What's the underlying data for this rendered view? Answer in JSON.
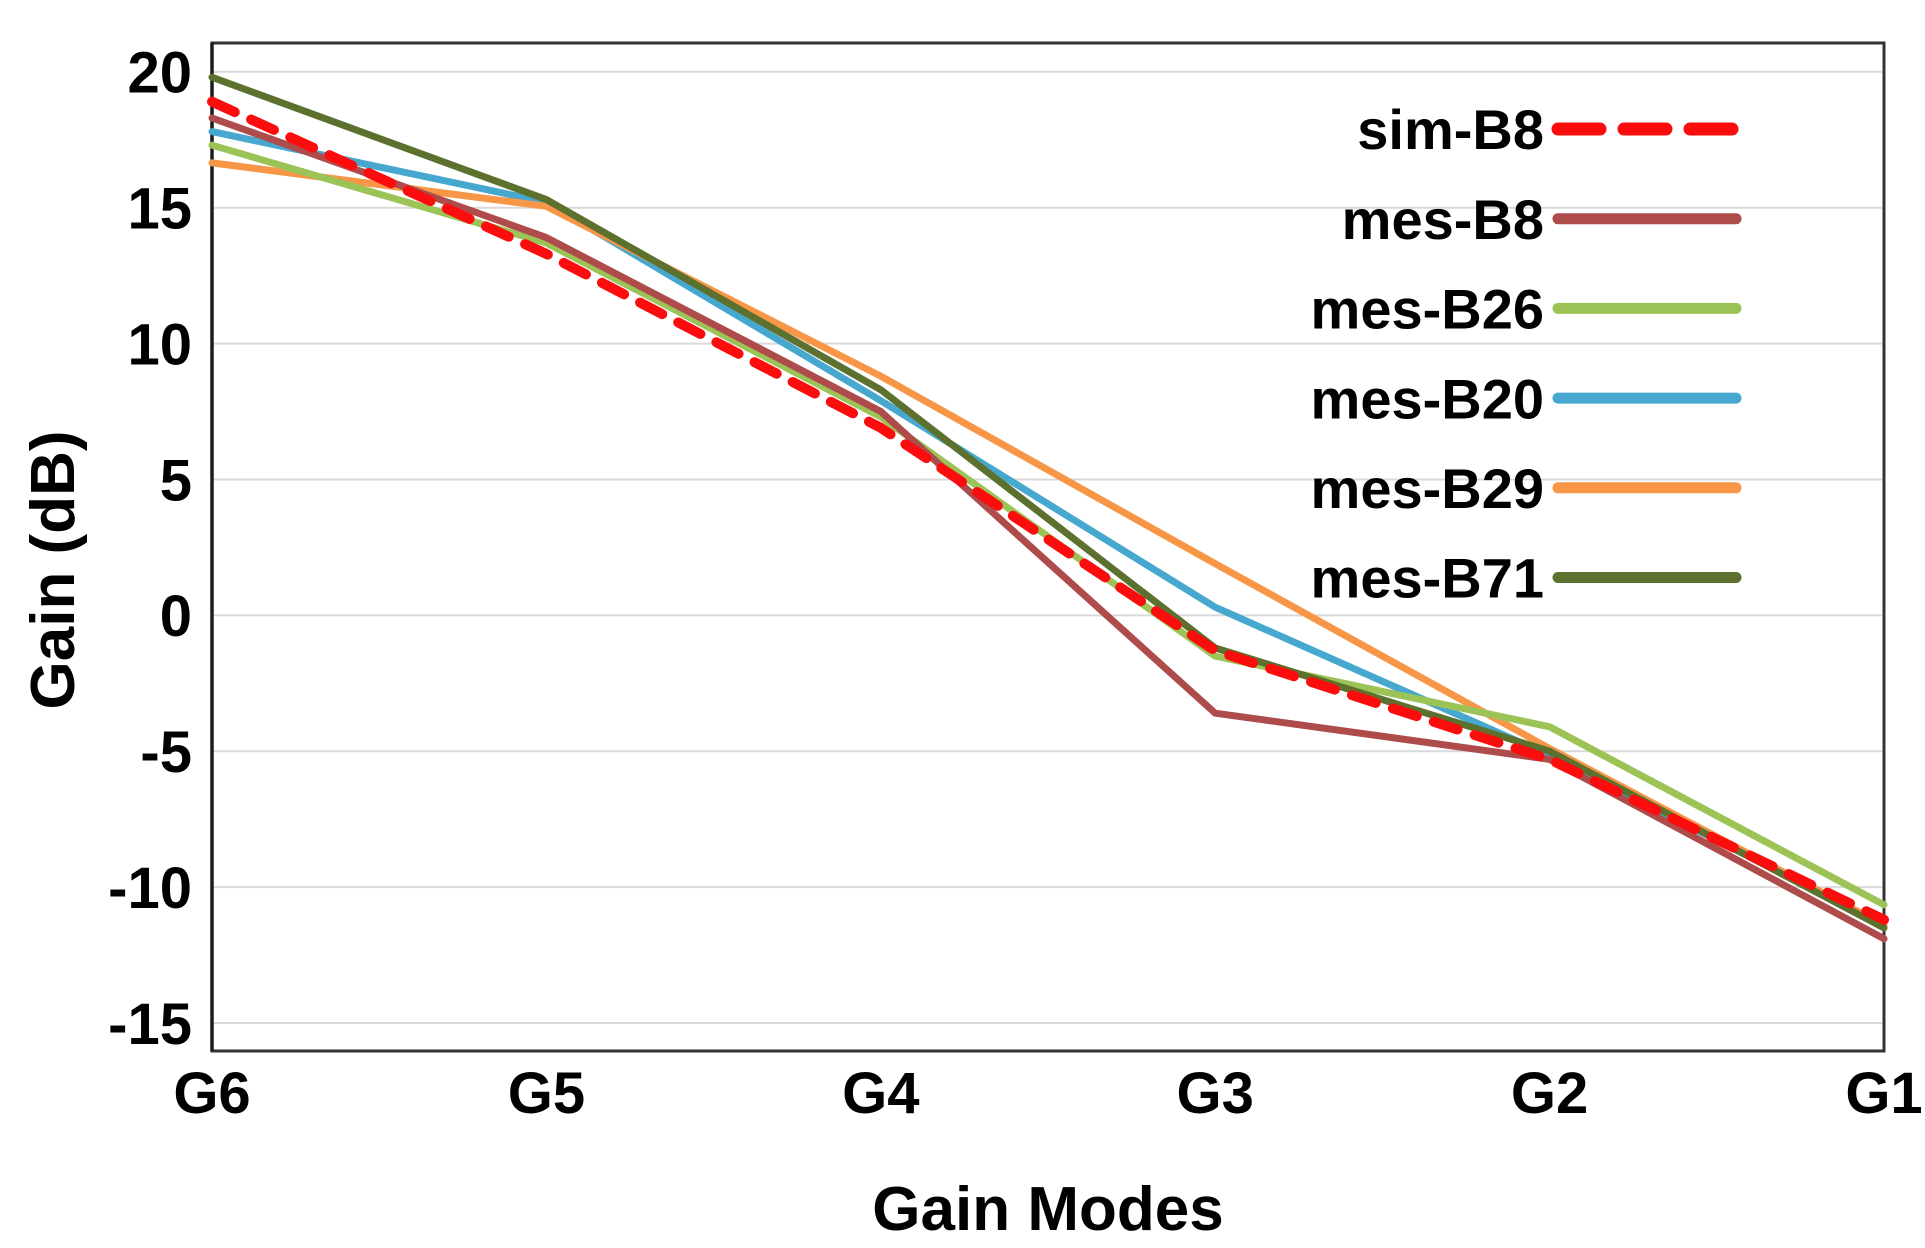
{
  "chart_data": {
    "type": "line",
    "title": "",
    "xlabel": "Gain Modes",
    "ylabel": "Gain (dB)",
    "categories": [
      "G6",
      "G5",
      "G4",
      "G3",
      "G2",
      "G1"
    ],
    "ytick_labels": [
      "20",
      "15",
      "10",
      "5",
      "0",
      "-5",
      "-10",
      "-15"
    ],
    "ytick_values": [
      20,
      15,
      10,
      5,
      0,
      -5,
      -10,
      -15
    ],
    "ylim": [
      -16.03,
      21.06
    ],
    "grid": "horizontal",
    "legend_position": "top-right-inside",
    "series": [
      {
        "name": "sim-B8",
        "color": "#fc0d0d",
        "style": "dashed",
        "width": 10,
        "values": [
          18.9,
          13.3,
          6.9,
          -1.3,
          -5.3,
          -11.2
        ]
      },
      {
        "name": "mes-B8",
        "color": "#ae4b4b",
        "style": "solid",
        "width": 7,
        "values": [
          18.3,
          13.9,
          7.5,
          -3.6,
          -5.3,
          -11.9
        ]
      },
      {
        "name": "mes-B26",
        "color": "#9cc355",
        "style": "solid",
        "width": 7,
        "values": [
          17.3,
          13.7,
          7.3,
          -1.5,
          -4.1,
          -10.65
        ]
      },
      {
        "name": "mes-B20",
        "color": "#46a8ce",
        "style": "solid",
        "width": 7,
        "values": [
          17.8,
          15.2,
          7.9,
          0.3,
          -5.15,
          -11.4
        ]
      },
      {
        "name": "mes-B29",
        "color": "#f79646",
        "style": "solid",
        "width": 7,
        "values": [
          16.65,
          15.05,
          8.8,
          1.9,
          -4.9,
          -11.4
        ]
      },
      {
        "name": "mes-B71",
        "color": "#5c712e",
        "style": "solid",
        "width": 7,
        "values": [
          19.8,
          15.3,
          8.3,
          -1.2,
          -5.0,
          -11.5
        ]
      }
    ],
    "draw_order": [
      "mes-B20",
      "mes-B29",
      "mes-B26",
      "mes-B8",
      "mes-B71",
      "sim-B8"
    ],
    "colors": {
      "grid": "#d9d9d9",
      "frame": "#333333",
      "text": "#000000",
      "background": "#ffffff"
    }
  }
}
